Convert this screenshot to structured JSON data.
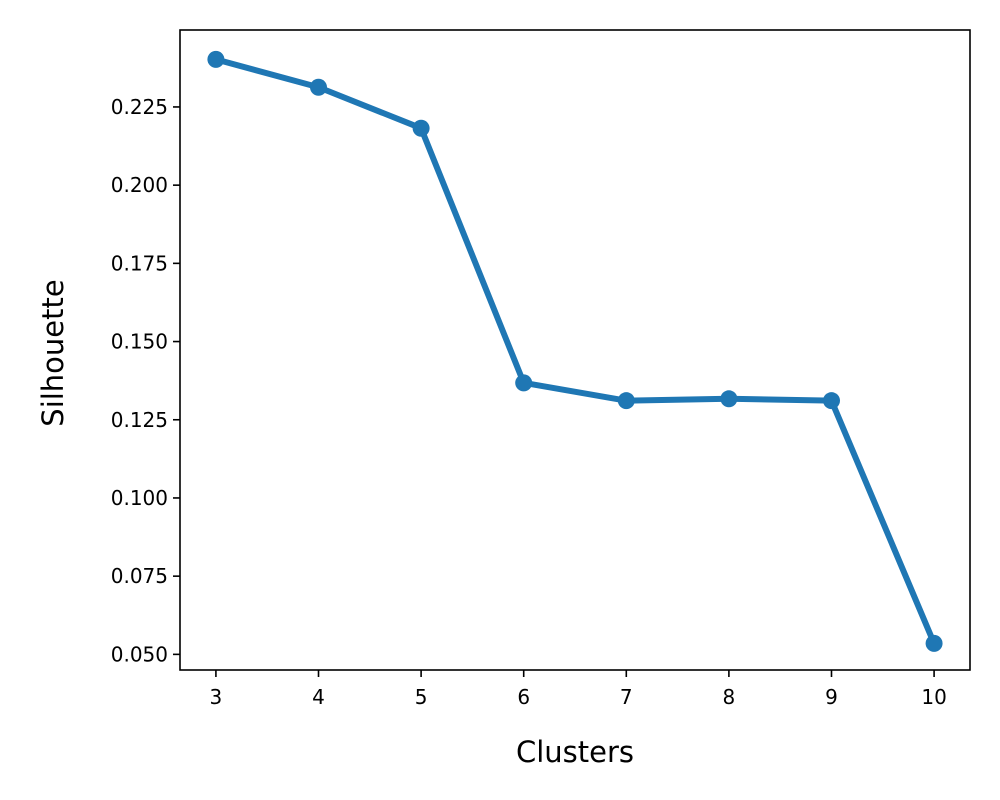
{
  "chart_data": {
    "type": "line",
    "title": "",
    "xlabel": "Clusters",
    "ylabel": "Silhouette",
    "x": [
      3,
      4,
      5,
      6,
      7,
      8,
      9,
      10
    ],
    "series": [
      {
        "values": [
          0.2402,
          0.2313,
          0.2182,
          0.1368,
          0.1311,
          0.1317,
          0.1311,
          0.0535
        ]
      }
    ],
    "xlim": [
      2.65,
      10.35
    ],
    "ylim": [
      0.045,
      0.2496
    ],
    "xticks": [
      3,
      4,
      5,
      6,
      7,
      8,
      9,
      10
    ],
    "xtick_labels": [
      "3",
      "4",
      "5",
      "6",
      "7",
      "8",
      "9",
      "10"
    ],
    "yticks": [
      0.05,
      0.075,
      0.1,
      0.125,
      0.15,
      0.175,
      0.2,
      0.225
    ],
    "ytick_labels": [
      "0.050",
      "0.075",
      "0.100",
      "0.125",
      "0.150",
      "0.175",
      "0.200",
      "0.225"
    ],
    "grid": false,
    "markers": true,
    "line_color": "#1f77b4"
  }
}
